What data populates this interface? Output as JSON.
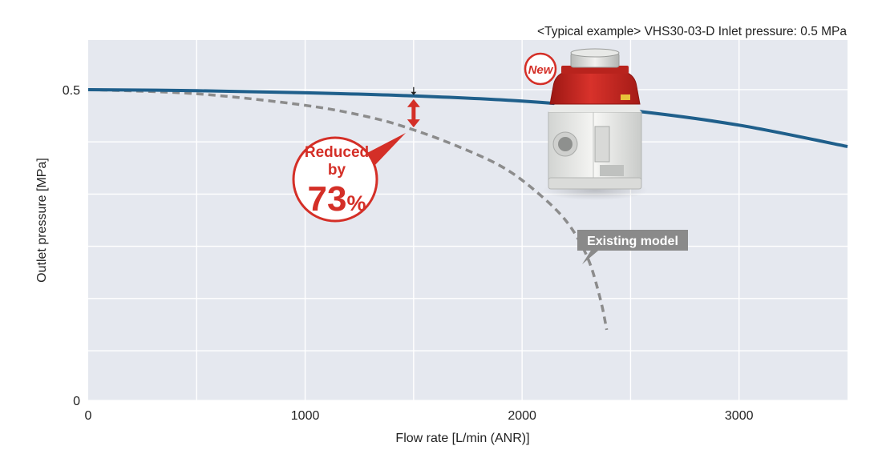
{
  "header_note": "<Typical example> VHS30-03-D Inlet pressure: 0.5 MPa",
  "chart_data": {
    "type": "line",
    "xlabel": "Flow rate [L/min (ANR)]",
    "ylabel": "Outlet pressure [MPa]",
    "xlim": [
      0,
      3500
    ],
    "ylim": [
      0,
      0.5
    ],
    "x_ticks": [
      "0",
      "1000",
      "2000",
      "3000"
    ],
    "y_ticks": [
      "0",
      "0.5"
    ],
    "grid": true,
    "series": [
      {
        "color": "#1f5f8b",
        "style": "solid",
        "points": [
          [
            0,
            0.5
          ],
          [
            500,
            0.498
          ],
          [
            1000,
            0.494
          ],
          [
            1500,
            0.488
          ],
          [
            2000,
            0.478
          ],
          [
            2500,
            0.46
          ],
          [
            3000,
            0.432
          ],
          [
            3500,
            0.391
          ]
        ]
      },
      {
        "name": "Existing model",
        "color": "#8c8c8c",
        "style": "dashed",
        "points": [
          [
            0,
            0.5
          ],
          [
            500,
            0.492
          ],
          [
            1000,
            0.47
          ],
          [
            1300,
            0.447
          ],
          [
            1500,
            0.423
          ],
          [
            1700,
            0.392
          ],
          [
            1900,
            0.354
          ],
          [
            2050,
            0.31
          ],
          [
            2200,
            0.25
          ],
          [
            2300,
            0.18
          ],
          [
            2360,
            0.1
          ],
          [
            2390,
            0.04
          ]
        ]
      }
    ],
    "annotations": {
      "reduction_line1": "Reduced",
      "reduction_line2": "by",
      "reduction_value": "73",
      "reduction_unit": "%",
      "reduction_x": 1500,
      "new_badge": "New",
      "existing_label": "Existing model"
    }
  },
  "colors": {
    "plot_bg": "#e5e8ef",
    "grid": "#ffffff",
    "accent_red": "#d42f27",
    "new_line": "#1f5f8b",
    "old_line": "#8c8c8c"
  },
  "product_image": "pressure-regulator-icon"
}
